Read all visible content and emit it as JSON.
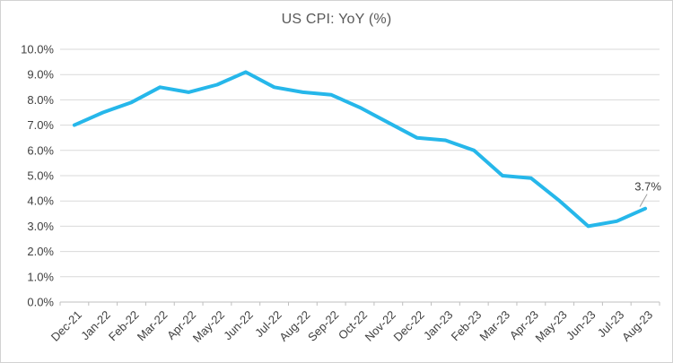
{
  "chart_data": {
    "type": "line",
    "title": "US CPI: YoY (%)",
    "categories": [
      "Dec-21",
      "Jan-22",
      "Feb-22",
      "Mar-22",
      "Apr-22",
      "May-22",
      "Jun-22",
      "Jul-22",
      "Aug-22",
      "Sep-22",
      "Oct-22",
      "Nov-22",
      "Dec-22",
      "Jan-23",
      "Feb-23",
      "Mar-23",
      "Apr-23",
      "May-23",
      "Jun-23",
      "Jul-23",
      "Aug-23"
    ],
    "values": [
      7.0,
      7.5,
      7.9,
      8.5,
      8.3,
      8.6,
      9.1,
      8.5,
      8.3,
      8.2,
      7.7,
      7.1,
      6.5,
      6.4,
      6.0,
      5.0,
      4.9,
      4.0,
      3.0,
      3.2,
      3.7
    ],
    "xlabel": "",
    "ylabel": "",
    "ylim": [
      0,
      10
    ],
    "y_tick_step": 1,
    "y_tick_labels": [
      "0.0%",
      "1.0%",
      "2.0%",
      "3.0%",
      "4.0%",
      "5.0%",
      "6.0%",
      "7.0%",
      "8.0%",
      "9.0%",
      "10.0%"
    ],
    "x_tick_rotation": -45,
    "grid": true,
    "legend": "none",
    "last_point_label": "3.7%"
  },
  "colors": {
    "line": "#26b7ea",
    "gridline": "#d9d9d9",
    "axis_line": "#bfbfbf",
    "tick_label_text": "#404040",
    "title_text": "#595959",
    "data_label_text": "#3a3a3a",
    "leader_line": "#9e9e9e",
    "frame_border": "#d2d2d2",
    "background": "#ffffff"
  }
}
